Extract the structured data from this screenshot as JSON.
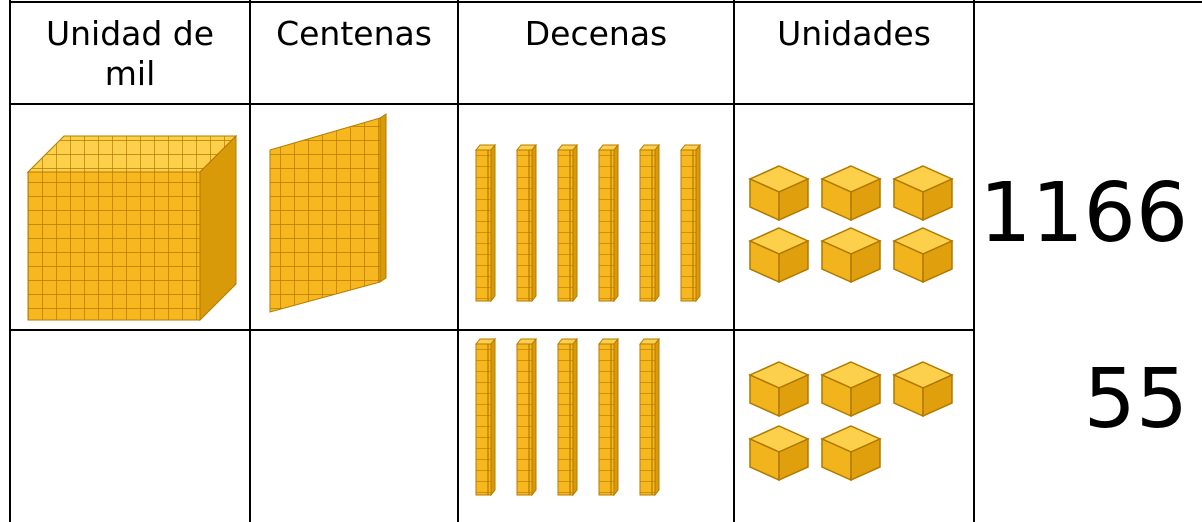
{
  "table": {
    "headers": [
      "Unidad de mil",
      "Centenas",
      "Decenas",
      "Unidades"
    ],
    "numbers": [
      "1166",
      "55"
    ]
  }
}
